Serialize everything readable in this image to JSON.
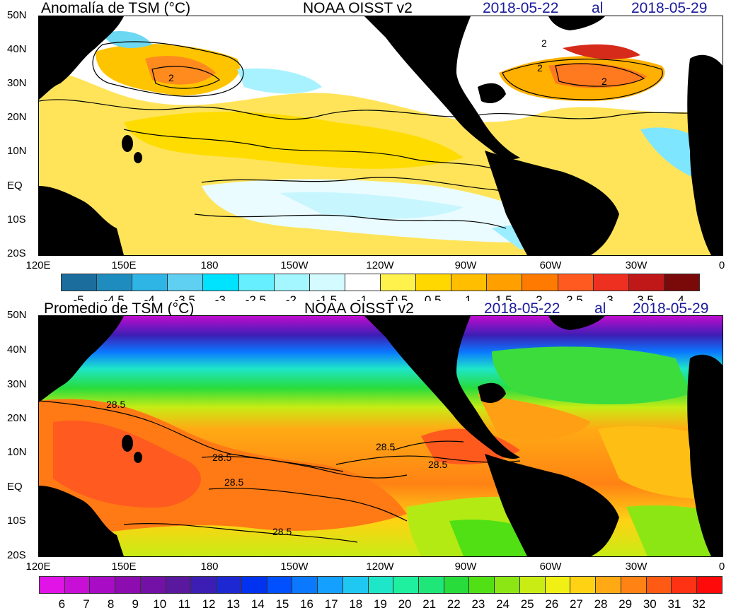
{
  "anomaly": {
    "title": "Anomalía de TSM (°C)",
    "dataset": "NOAA OISST v2",
    "date_start": "2018-05-22",
    "date_sep": "al",
    "date_end": "2018-05-29",
    "lat_labels": [
      "50N",
      "40N",
      "30N",
      "20N",
      "10N",
      "EQ",
      "10S",
      "20S"
    ],
    "lon_labels": [
      "120E",
      "150E",
      "180",
      "150W",
      "120W",
      "90W",
      "60W",
      "30W",
      "0"
    ],
    "contour_labels": [
      "2",
      "2",
      "2",
      "2"
    ],
    "colorbar": {
      "colors": [
        "#1a6d9c",
        "#1f8cbf",
        "#2fb4e6",
        "#5fd0f2",
        "#00e3ff",
        "#66f0ff",
        "#a4f7ff",
        "#d4fbff",
        "#ffffff",
        "#fff24d",
        "#ffd800",
        "#ffbf00",
        "#ff9f00",
        "#ff7a00",
        "#ff5a1f",
        "#ee3020",
        "#c01818",
        "#7a0a0a"
      ],
      "labels": [
        "-5",
        "-4.5",
        "-4",
        "-3.5",
        "-3",
        "-2.5",
        "-2",
        "-1.5",
        "-1",
        "-0.5",
        "0.5",
        "1",
        "1.5",
        "2",
        "2.5",
        "3",
        "3.5",
        "4"
      ]
    }
  },
  "mean": {
    "title": "Promedio de TSM (°C)",
    "dataset": "NOAA OISST v2",
    "date_start": "2018-05-22",
    "date_sep": "al",
    "date_end": "2018-05-29",
    "lat_labels": [
      "50N",
      "40N",
      "30N",
      "20N",
      "10N",
      "EQ",
      "10S",
      "20S"
    ],
    "lon_labels": [
      "120E",
      "150E",
      "180",
      "150W",
      "120W",
      "90W",
      "60W",
      "30W",
      "0"
    ],
    "contour_labels": [
      "28.5",
      "28.5",
      "28.5",
      "28.5",
      "28.5",
      "28.5"
    ],
    "colorbar": {
      "colors": [
        "#e014e6",
        "#c80fd6",
        "#a80cc4",
        "#8c0cb0",
        "#7310a6",
        "#5a189e",
        "#3c1eb4",
        "#1e28d2",
        "#0032f0",
        "#0050ff",
        "#0a78ff",
        "#14a0ff",
        "#1ec8f0",
        "#1ee6c8",
        "#1ef0a0",
        "#1ee678",
        "#28dc3c",
        "#50e014",
        "#8ce614",
        "#c8ec14",
        "#f0f014",
        "#ffd214",
        "#ffaa14",
        "#ff8214",
        "#ff5a14",
        "#ff3214",
        "#ff0a0a"
      ],
      "labels": [
        "6",
        "7",
        "8",
        "9",
        "10",
        "11",
        "12",
        "13",
        "14",
        "15",
        "16",
        "17",
        "18",
        "19",
        "20",
        "21",
        "22",
        "23",
        "24",
        "25",
        "26",
        "27",
        "28",
        "29",
        "30",
        "31",
        "32"
      ]
    }
  }
}
